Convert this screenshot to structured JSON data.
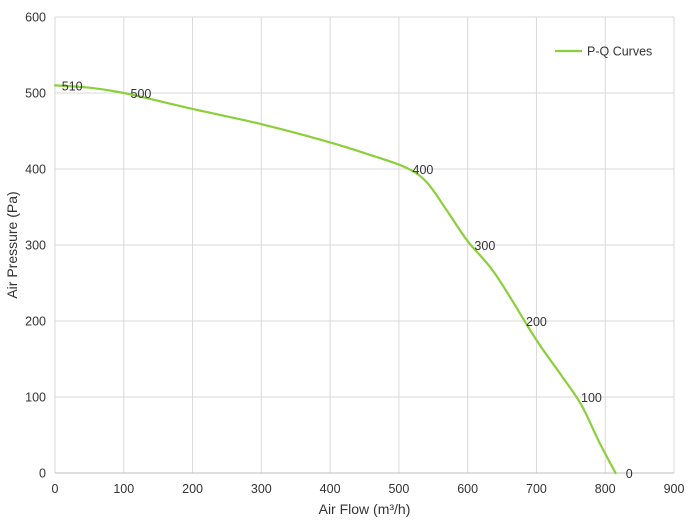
{
  "chart_data": {
    "type": "line",
    "title": "",
    "xlabel": "Air Flow  (m³/h)",
    "ylabel": "Air Pressure  (Pa)",
    "xlim": [
      0,
      900
    ],
    "ylim": [
      0,
      600
    ],
    "x_ticks": [
      0,
      100,
      200,
      300,
      400,
      500,
      600,
      700,
      800,
      900
    ],
    "y_ticks": [
      0,
      100,
      200,
      300,
      400,
      500,
      600
    ],
    "grid": true,
    "legend_position": "top-right",
    "series": [
      {
        "name": "P-Q Curves",
        "color": "#8ccf3c",
        "points": [
          {
            "x": 0,
            "y": 510
          },
          {
            "x": 50,
            "y": 507
          },
          {
            "x": 100,
            "y": 500
          },
          {
            "x": 200,
            "y": 479
          },
          {
            "x": 300,
            "y": 459
          },
          {
            "x": 400,
            "y": 435
          },
          {
            "x": 460,
            "y": 418
          },
          {
            "x": 510,
            "y": 402
          },
          {
            "x": 540,
            "y": 383
          },
          {
            "x": 570,
            "y": 345
          },
          {
            "x": 600,
            "y": 305
          },
          {
            "x": 640,
            "y": 262
          },
          {
            "x": 700,
            "y": 175
          },
          {
            "x": 735,
            "y": 130
          },
          {
            "x": 765,
            "y": 90
          },
          {
            "x": 790,
            "y": 43
          },
          {
            "x": 815,
            "y": 0
          }
        ]
      }
    ],
    "data_labels": [
      {
        "text": "510",
        "x": 20,
        "y": 510
      },
      {
        "text": "500",
        "x": 120,
        "y": 500
      },
      {
        "text": "400",
        "x": 530,
        "y": 400
      },
      {
        "text": "300",
        "x": 620,
        "y": 300
      },
      {
        "text": "200",
        "x": 695,
        "y": 200
      },
      {
        "text": "100",
        "x": 775,
        "y": 100
      },
      {
        "text": "0",
        "x": 840,
        "y": 0
      }
    ]
  }
}
